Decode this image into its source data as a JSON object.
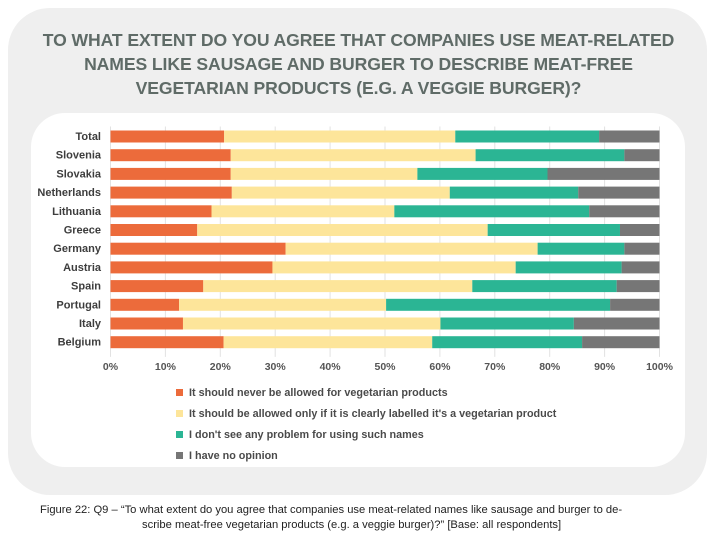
{
  "title": "TO WHAT EXTENT DO YOU AGREE THAT COMPANIES USE MEAT-RELATED NAMES LIKE SAUSAGE AND BURGER TO DESCRIBE MEAT-FREE VEGETARIAN PRODUCTS (E.G. A VEGGIE BURGER)?",
  "title_lines": [
    "TO WHAT EXTENT DO YOU AGREE THAT COMPANIES USE MEAT-RELATED",
    "NAMES LIKE SAUSAGE AND BURGER TO DESCRIBE MEAT-FREE",
    "VEGETARIAN PRODUCTS (E.G. A VEGGIE BURGER)?"
  ],
  "caption_lines": [
    "Figure 22: Q9 – “To what extent do you agree that companies use meat-related names like sausage and burger to de-",
    "scribe meat-free vegetarian products (e.g. a veggie burger)?” [Base: all respondents]"
  ],
  "chart_data": {
    "type": "bar",
    "orientation": "horizontal",
    "stacked": true,
    "title": "TO WHAT EXTENT DO YOU AGREE THAT COMPANIES USE MEAT-RELATED NAMES LIKE SAUSAGE AND BURGER TO DESCRIBE MEAT-FREE VEGETARIAN PRODUCTS (E.G. A VEGGIE BURGER)?",
    "xlabel": "",
    "ylabel": "",
    "xlim": [
      0,
      100
    ],
    "x_ticks": [
      "0%",
      "10%",
      "20%",
      "30%",
      "40%",
      "50%",
      "60%",
      "70%",
      "80%",
      "90%",
      "100%"
    ],
    "grid": true,
    "legend_position": "bottom",
    "categories": [
      "Total",
      "Slovenia",
      "Slovakia",
      "Netherlands",
      "Lithuania",
      "Greece",
      "Germany",
      "Austria",
      "Spain",
      "Portugal",
      "Italy",
      "Belgium"
    ],
    "series": [
      {
        "name": "It should never be allowed for vegetarian products",
        "color": "#ec6b3b",
        "values": [
          20.7,
          21.9,
          21.9,
          22.1,
          18.4,
          15.8,
          31.9,
          29.5,
          16.9,
          12.5,
          13.2,
          20.6
        ]
      },
      {
        "name": "It should be allowed only if it is clearly labelled it's a vegetarian product",
        "color": "#fde59a",
        "values": [
          42.1,
          44.6,
          34.0,
          39.7,
          33.3,
          52.9,
          45.9,
          44.3,
          49.0,
          37.7,
          46.9,
          38.0
        ]
      },
      {
        "name": "I don't see any problem for using such names",
        "color": "#2bb594",
        "values": [
          26.2,
          27.1,
          23.7,
          23.4,
          35.5,
          24.1,
          15.8,
          19.3,
          26.3,
          40.8,
          24.3,
          27.3
        ]
      },
      {
        "name": "I have no opinion",
        "color": "#767676",
        "values": [
          11.0,
          6.4,
          20.4,
          14.8,
          12.8,
          7.2,
          6.4,
          6.9,
          7.8,
          9.0,
          15.6,
          14.1
        ]
      }
    ]
  }
}
